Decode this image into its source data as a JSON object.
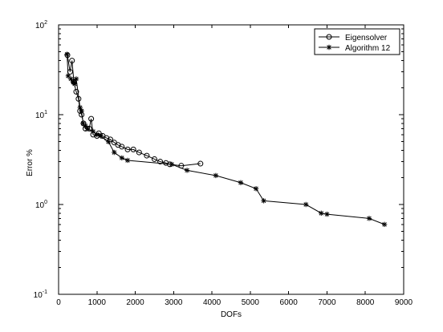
{
  "chart_data": {
    "type": "line",
    "xlabel": "DOFs",
    "ylabel": "Error %",
    "x_scale": "linear",
    "y_scale": "log",
    "xlim": [
      0,
      9000
    ],
    "ylim": [
      0.1,
      100
    ],
    "x_ticks": [
      {
        "value": 0,
        "label": "0"
      },
      {
        "value": 1000,
        "label": "1000"
      },
      {
        "value": 2000,
        "label": "2000"
      },
      {
        "value": 3000,
        "label": "3000"
      },
      {
        "value": 4000,
        "label": "4000"
      },
      {
        "value": 5000,
        "label": "5000"
      },
      {
        "value": 6000,
        "label": "6000"
      },
      {
        "value": 7000,
        "label": "7000"
      },
      {
        "value": 8000,
        "label": "8000"
      },
      {
        "value": 9000,
        "label": "9000"
      }
    ],
    "y_ticks": [
      {
        "value": 0.1,
        "base": "10",
        "exp": "-1"
      },
      {
        "value": 1,
        "base": "10",
        "exp": "0"
      },
      {
        "value": 10,
        "base": "10",
        "exp": "1"
      },
      {
        "value": 100,
        "base": "10",
        "exp": "2"
      }
    ],
    "grid": false,
    "legend_position": "top-right",
    "series": [
      {
        "name": "Eigensolver",
        "marker": "circle",
        "color": "#000000",
        "x": [
          230,
          300,
          350,
          400,
          460,
          520,
          560,
          600,
          650,
          700,
          800,
          850,
          900,
          1000,
          1050,
          1150,
          1250,
          1350,
          1450,
          1550,
          1650,
          1800,
          1950,
          2100,
          2300,
          2500,
          2650,
          2800,
          2900,
          3200,
          3700
        ],
        "y": [
          46,
          30,
          40,
          23,
          18,
          15,
          11,
          10,
          8,
          7,
          7,
          9,
          6,
          5.8,
          6.2,
          5.8,
          5.5,
          5.3,
          4.9,
          4.6,
          4.4,
          4.1,
          4.1,
          3.8,
          3.5,
          3.2,
          3.0,
          2.9,
          2.8,
          2.7,
          2.85
        ]
      },
      {
        "name": "Algorithm 12",
        "marker": "asterisk",
        "color": "#000000",
        "x": [
          220,
          250,
          320,
          380,
          420,
          460,
          560,
          600,
          640,
          700,
          750,
          900,
          1000,
          1100,
          1300,
          1450,
          1650,
          1800,
          2950,
          3350,
          4100,
          4750,
          5150,
          5350,
          6450,
          6850,
          7000,
          8100,
          8500
        ],
        "y": [
          47,
          27,
          25,
          23,
          22,
          25,
          12,
          11,
          8,
          7.5,
          7,
          6.5,
          6,
          5.8,
          5,
          3.8,
          3.3,
          3.1,
          2.8,
          2.4,
          2.1,
          1.75,
          1.5,
          1.1,
          1.0,
          0.8,
          0.78,
          0.7,
          0.6
        ]
      }
    ]
  }
}
